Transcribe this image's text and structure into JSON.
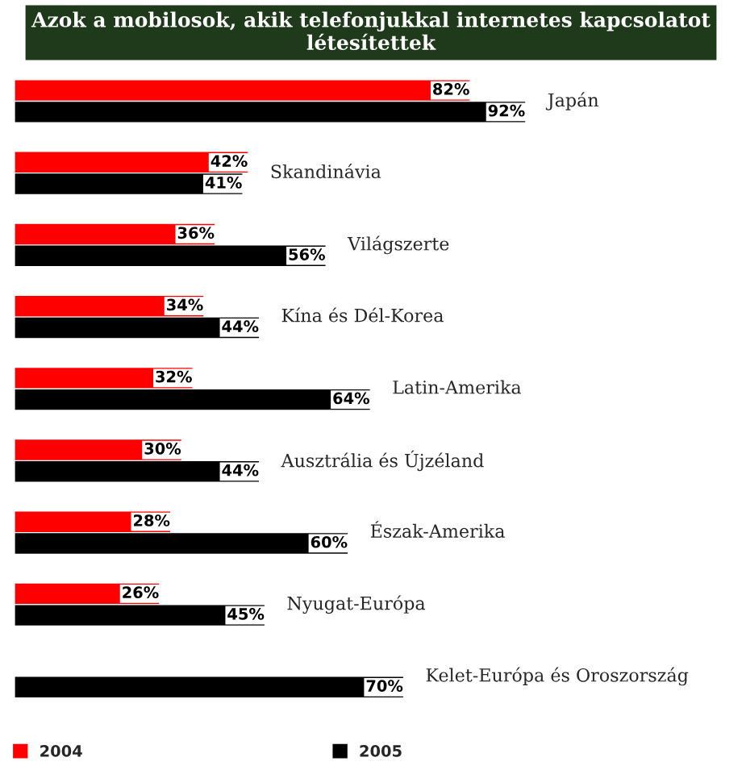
{
  "chart_data": {
    "type": "bar",
    "orientation": "horizontal",
    "title": "Azok a mobilosok, akik telefonjukkal internetes kapcsolatot létesítettek",
    "categories": [
      "Japán",
      "Skandinávia",
      "Világszerte",
      "Kína és Dél-Korea",
      "Latin-Amerika",
      "Ausztrália és Újzéland",
      "Észak-Amerika",
      "Nyugat-Európa",
      "Kelet-Európa és Oroszország"
    ],
    "series": [
      {
        "name": "2004",
        "color": "#ff0000",
        "values": [
          82,
          42,
          36,
          34,
          32,
          30,
          28,
          26,
          null
        ],
        "value_labels": [
          "82%",
          "42%",
          "36%",
          "34%",
          "32%",
          "30%",
          "28%",
          "26%",
          null
        ]
      },
      {
        "name": "2005",
        "color": "#000000",
        "values": [
          92,
          41,
          56,
          44,
          64,
          44,
          60,
          45,
          70
        ],
        "value_labels": [
          "92%",
          "41%",
          "56%",
          "44%",
          "64%",
          "44%",
          "60%",
          "45%",
          "70%"
        ]
      }
    ],
    "legend": "bottom"
  }
}
